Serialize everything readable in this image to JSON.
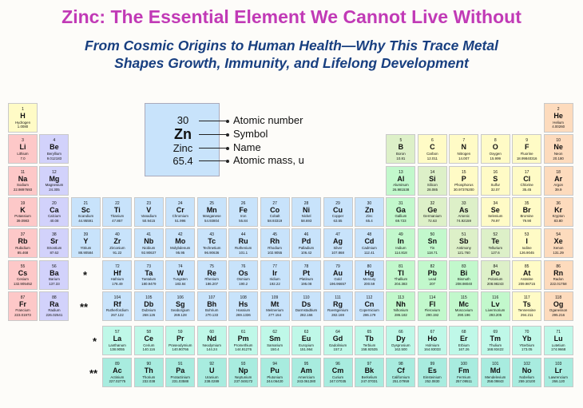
{
  "header": {
    "title": "Zinc: The Essential Element We Cannot Live Without",
    "subtitle_line1": "From Cosmic Origins to Human Health—Why This Trace Metal",
    "subtitle_line2": "Shapes Growth, Immunity, and Lifelong Development"
  },
  "key": {
    "number": "30",
    "symbol": "Zn",
    "name": "Zinc",
    "mass": "65.4",
    "labels": [
      "Atomic number",
      "Symbol",
      "Name",
      "Atomic mass, u"
    ]
  },
  "markers": {
    "lanthanide": "*",
    "actinide": "**"
  },
  "category_colors": {
    "alkali": "#fdc8c8",
    "alkaline": "#d2d2fb",
    "transition": "#c8e3fb",
    "post": "#c2f8cc",
    "metalloid": "#ddf0c8",
    "nonmetal": "#fffbc6",
    "halogen": "#fffbc6",
    "noble": "#fddbbd",
    "lanthanide": "#bff8e8",
    "actinide": "#a8ecdf"
  },
  "elements": [
    [
      1,
      "H",
      "Hydrogen",
      "1.0080",
      "nonmetal"
    ],
    [
      2,
      "He",
      "Helium",
      "4.00260",
      "noble"
    ],
    [
      3,
      "Li",
      "Lithium",
      "7.0",
      "alkali"
    ],
    [
      4,
      "Be",
      "Beryllium",
      "9.012183",
      "alkaline"
    ],
    [
      5,
      "B",
      "Boron",
      "10.81",
      "metalloid"
    ],
    [
      6,
      "C",
      "Carbon",
      "12.011",
      "nonmetal"
    ],
    [
      7,
      "N",
      "Nitrogen",
      "14.007",
      "nonmetal"
    ],
    [
      8,
      "O",
      "Oxygen",
      "15.999",
      "nonmetal"
    ],
    [
      9,
      "F",
      "Fluorine",
      "18.99840316",
      "halogen"
    ],
    [
      10,
      "Ne",
      "Neon",
      "20.180",
      "noble"
    ],
    [
      11,
      "Na",
      "Sodium",
      "22.9897693",
      "alkali"
    ],
    [
      12,
      "Mg",
      "Magnesium",
      "24.305",
      "alkaline"
    ],
    [
      13,
      "Al",
      "Aluminum",
      "26.981538",
      "post"
    ],
    [
      14,
      "Si",
      "Silicon",
      "28.085",
      "metalloid"
    ],
    [
      15,
      "P",
      "Phosphorus",
      "30.97376200",
      "nonmetal"
    ],
    [
      16,
      "S",
      "Sulfur",
      "32.07",
      "nonmetal"
    ],
    [
      17,
      "Cl",
      "Chlorine",
      "35.45",
      "halogen"
    ],
    [
      18,
      "Ar",
      "Argon",
      "39.9",
      "noble"
    ],
    [
      19,
      "K",
      "Potassium",
      "39.0983",
      "alkali"
    ],
    [
      20,
      "Ca",
      "Calcium",
      "40.08",
      "alkaline"
    ],
    [
      21,
      "Sc",
      "Scandium",
      "44.95591",
      "transition"
    ],
    [
      22,
      "Ti",
      "Titanium",
      "47.867",
      "transition"
    ],
    [
      23,
      "V",
      "Vanadium",
      "50.9415",
      "transition"
    ],
    [
      24,
      "Cr",
      "Chromium",
      "51.996",
      "transition"
    ],
    [
      25,
      "Mn",
      "Manganese",
      "54.93804",
      "transition"
    ],
    [
      26,
      "Fe",
      "Iron",
      "55.84",
      "transition"
    ],
    [
      27,
      "Co",
      "Cobalt",
      "58.93319",
      "transition"
    ],
    [
      28,
      "Ni",
      "Nickel",
      "58.693",
      "transition"
    ],
    [
      29,
      "Cu",
      "Copper",
      "63.55",
      "transition"
    ],
    [
      30,
      "Zn",
      "Zinc",
      "65.4",
      "transition"
    ],
    [
      31,
      "Ga",
      "Gallium",
      "69.723",
      "post"
    ],
    [
      32,
      "Ge",
      "Germanium",
      "72.63",
      "metalloid"
    ],
    [
      33,
      "As",
      "Arsenic",
      "74.92159",
      "metalloid"
    ],
    [
      34,
      "Se",
      "Selenium",
      "78.97",
      "nonmetal"
    ],
    [
      35,
      "Br",
      "Bromine",
      "79.90",
      "halogen"
    ],
    [
      36,
      "Kr",
      "Krypton",
      "83.80",
      "noble"
    ],
    [
      37,
      "Rb",
      "Rubidium",
      "85.468",
      "alkali"
    ],
    [
      38,
      "Sr",
      "Strontium",
      "87.62",
      "alkaline"
    ],
    [
      39,
      "Y",
      "Yttrium",
      "88.90584",
      "transition"
    ],
    [
      40,
      "Zr",
      "Zirconium",
      "91.22",
      "transition"
    ],
    [
      41,
      "Nb",
      "Niobium",
      "92.90637",
      "transition"
    ],
    [
      42,
      "Mo",
      "Molybdenum",
      "95.95",
      "transition"
    ],
    [
      43,
      "Tc",
      "Technetium",
      "96.90636",
      "transition"
    ],
    [
      44,
      "Ru",
      "Ruthenium",
      "101.1",
      "transition"
    ],
    [
      45,
      "Rh",
      "Rhodium",
      "102.9055",
      "transition"
    ],
    [
      46,
      "Pd",
      "Palladium",
      "106.42",
      "transition"
    ],
    [
      47,
      "Ag",
      "Silver",
      "107.868",
      "transition"
    ],
    [
      48,
      "Cd",
      "Cadmium",
      "112.41",
      "transition"
    ],
    [
      49,
      "In",
      "Indium",
      "114.818",
      "post"
    ],
    [
      50,
      "Sn",
      "Tin",
      "118.71",
      "post"
    ],
    [
      51,
      "Sb",
      "Antimony",
      "121.760",
      "metalloid"
    ],
    [
      52,
      "Te",
      "Tellurium",
      "127.6",
      "metalloid"
    ],
    [
      53,
      "I",
      "Iodine",
      "126.9045",
      "halogen"
    ],
    [
      54,
      "Xe",
      "Xenon",
      "131.29",
      "noble"
    ],
    [
      55,
      "Cs",
      "Cesium",
      "132.905452",
      "alkali"
    ],
    [
      56,
      "Ba",
      "Barium",
      "137.33",
      "alkaline"
    ],
    [
      57,
      "La",
      "Lanthanum",
      "138.9055",
      "lanthanide"
    ],
    [
      58,
      "Ce",
      "Cerium",
      "140.116",
      "lanthanide"
    ],
    [
      59,
      "Pr",
      "Praseodymium",
      "140.90766",
      "lanthanide"
    ],
    [
      60,
      "Nd",
      "Neodymium",
      "144.24",
      "lanthanide"
    ],
    [
      61,
      "Pm",
      "Promethium",
      "144.91276",
      "lanthanide"
    ],
    [
      62,
      "Sm",
      "Samarium",
      "150.4",
      "lanthanide"
    ],
    [
      63,
      "Eu",
      "Europium",
      "151.964",
      "lanthanide"
    ],
    [
      64,
      "Gd",
      "Gadolinium",
      "157.2",
      "lanthanide"
    ],
    [
      65,
      "Tb",
      "Terbium",
      "158.92535",
      "lanthanide"
    ],
    [
      66,
      "Dy",
      "Dysprosium",
      "162.500",
      "lanthanide"
    ],
    [
      67,
      "Ho",
      "Holmium",
      "164.93033",
      "lanthanide"
    ],
    [
      68,
      "Er",
      "Erbium",
      "167.26",
      "lanthanide"
    ],
    [
      69,
      "Tm",
      "Thulium",
      "168.93422",
      "lanthanide"
    ],
    [
      70,
      "Yb",
      "Ytterbium",
      "173.05",
      "lanthanide"
    ],
    [
      71,
      "Lu",
      "Lutetium",
      "174.9668",
      "lanthanide"
    ],
    [
      72,
      "Hf",
      "Hafnium",
      "178.49",
      "transition"
    ],
    [
      73,
      "Ta",
      "Tantalum",
      "180.9479",
      "transition"
    ],
    [
      74,
      "W",
      "Tungsten",
      "183.84",
      "transition"
    ],
    [
      75,
      "Re",
      "Rhenium",
      "186.207",
      "transition"
    ],
    [
      76,
      "Os",
      "Osmium",
      "190.2",
      "transition"
    ],
    [
      77,
      "Ir",
      "Iridium",
      "192.22",
      "transition"
    ],
    [
      78,
      "Pt",
      "Platinum",
      "195.08",
      "transition"
    ],
    [
      79,
      "Au",
      "Gold",
      "196.96657",
      "transition"
    ],
    [
      80,
      "Hg",
      "Mercury",
      "200.59",
      "transition"
    ],
    [
      81,
      "Tl",
      "Thallium",
      "204.383",
      "post"
    ],
    [
      82,
      "Pb",
      "Lead",
      "207",
      "post"
    ],
    [
      83,
      "Bi",
      "Bismuth",
      "208.98040",
      "post"
    ],
    [
      84,
      "Po",
      "Polonium",
      "208.98243",
      "metalloid"
    ],
    [
      85,
      "At",
      "Astatine",
      "209.98715",
      "halogen"
    ],
    [
      86,
      "Rn",
      "Radon",
      "222.01758",
      "noble"
    ],
    [
      87,
      "Fr",
      "Francium",
      "223.01973",
      "alkali"
    ],
    [
      88,
      "Ra",
      "Radium",
      "226.02541",
      "alkaline"
    ],
    [
      89,
      "Ac",
      "Actinium",
      "227.02775",
      "actinide"
    ],
    [
      90,
      "Th",
      "Thorium",
      "232.038",
      "actinide"
    ],
    [
      91,
      "Pa",
      "Protactinium",
      "231.03588",
      "actinide"
    ],
    [
      92,
      "U",
      "Uranium",
      "238.0289",
      "actinide"
    ],
    [
      93,
      "Np",
      "Neptunium",
      "237.048172",
      "actinide"
    ],
    [
      94,
      "Pu",
      "Plutonium",
      "244.06420",
      "actinide"
    ],
    [
      95,
      "Am",
      "Americium",
      "243.061380",
      "actinide"
    ],
    [
      96,
      "Cm",
      "Curium",
      "247.07035",
      "actinide"
    ],
    [
      97,
      "Bk",
      "Berkelium",
      "247.07031",
      "actinide"
    ],
    [
      98,
      "Cf",
      "Californium",
      "251.07959",
      "actinide"
    ],
    [
      99,
      "Es",
      "Einsteinium",
      "252.0830",
      "actinide"
    ],
    [
      100,
      "Fm",
      "Fermium",
      "257.09511",
      "actinide"
    ],
    [
      101,
      "Md",
      "Mendelevium",
      "258.09843",
      "actinide"
    ],
    [
      102,
      "No",
      "Nobelium",
      "259.10100",
      "actinide"
    ],
    [
      103,
      "Lr",
      "Lawrencium",
      "266.120",
      "actinide"
    ],
    [
      104,
      "Rf",
      "Rutherfordium",
      "267.122",
      "transition"
    ],
    [
      105,
      "Db",
      "Dubnium",
      "268.126",
      "transition"
    ],
    [
      106,
      "Sg",
      "Seaborgium",
      "269.128",
      "transition"
    ],
    [
      107,
      "Bh",
      "Bohrium",
      "270.133",
      "transition"
    ],
    [
      108,
      "Hs",
      "Hassium",
      "269.1336",
      "transition"
    ],
    [
      109,
      "Mt",
      "Meitnerium",
      "277.154",
      "transition"
    ],
    [
      110,
      "Ds",
      "Darmstadtium",
      "282.166",
      "transition"
    ],
    [
      111,
      "Rg",
      "Roentgenium",
      "282.169",
      "transition"
    ],
    [
      112,
      "Cn",
      "Copernicium",
      "286.179",
      "transition"
    ],
    [
      113,
      "Nh",
      "Nihonium",
      "286.182",
      "post"
    ],
    [
      114,
      "Fl",
      "Flerovium",
      "290.192",
      "post"
    ],
    [
      115,
      "Mc",
      "Moscovium",
      "290.196",
      "post"
    ],
    [
      116,
      "Lv",
      "Livermorium",
      "293.205",
      "post"
    ],
    [
      117,
      "Ts",
      "Tennessine",
      "294.211",
      "halogen"
    ],
    [
      118,
      "Og",
      "Oganesson",
      "295.216",
      "noble"
    ]
  ]
}
